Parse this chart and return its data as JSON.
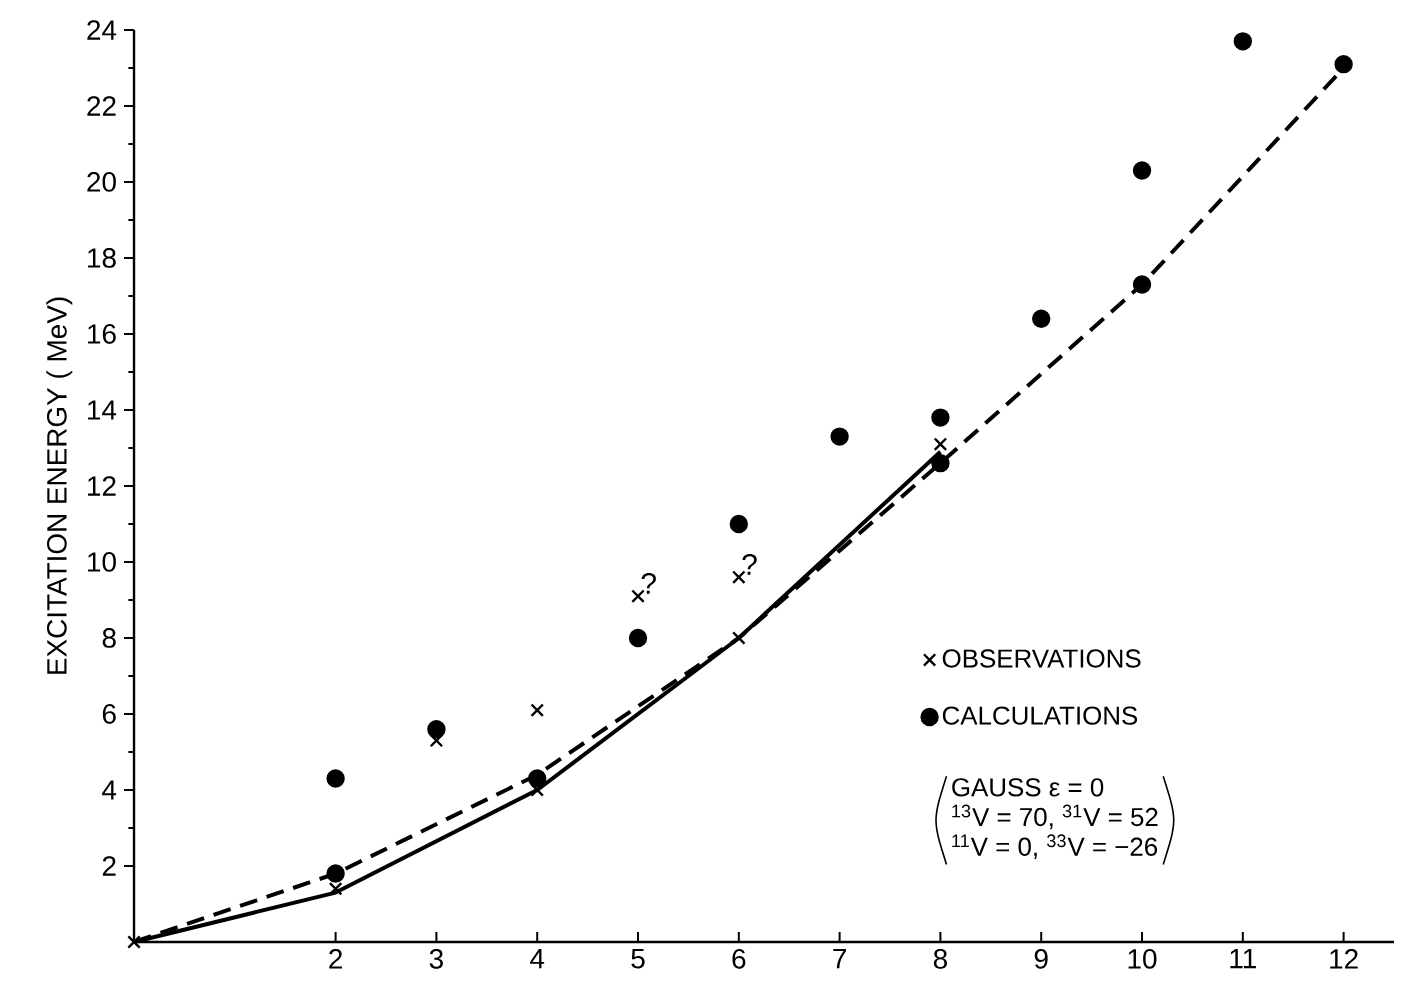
{
  "chart_data": {
    "type": "scatter",
    "ylabel": "EXCITATION ENERGY  ( MeV)",
    "xlim": [
      0,
      12.5
    ],
    "ylim": [
      0,
      24
    ],
    "xticks": [
      2,
      3,
      4,
      5,
      6,
      7,
      8,
      9,
      10,
      11,
      12
    ],
    "yticks": [
      2,
      4,
      6,
      8,
      10,
      12,
      14,
      16,
      18,
      20,
      22,
      24
    ],
    "legend": "right",
    "series": [
      {
        "name": "OBSERVATIONS",
        "marker": "cross",
        "color": "#000000",
        "x": [
          0,
          2,
          3,
          4,
          4,
          5,
          6,
          6,
          8
        ],
        "values": [
          0,
          1.4,
          5.3,
          6.1,
          4.0,
          9.1,
          9.6,
          8.0,
          13.1
        ]
      },
      {
        "name": "CALCULATIONS",
        "marker": "circle",
        "color": "#000000",
        "x": [
          2,
          2,
          3,
          4,
          5,
          6,
          7,
          8,
          8,
          9,
          10,
          10,
          11,
          12
        ],
        "values": [
          4.3,
          1.8,
          5.6,
          4.3,
          8.0,
          11.0,
          13.3,
          13.8,
          12.6,
          16.4,
          20.3,
          17.3,
          23.7,
          23.1
        ]
      },
      {
        "type": "line",
        "line_style": "solid",
        "color": "#000000",
        "x": [
          0,
          2,
          4,
          6,
          8
        ],
        "values": [
          0,
          1.3,
          4.0,
          8.0,
          12.9
        ]
      },
      {
        "type": "line",
        "line_style": "dashed",
        "color": "#000000",
        "x": [
          0,
          2,
          4,
          6,
          8,
          10,
          12
        ],
        "values": [
          0,
          1.8,
          4.4,
          8.0,
          12.6,
          17.3,
          23.0
        ]
      }
    ],
    "annotations": [
      {
        "text": "?",
        "x": 5,
        "y": 9.1
      },
      {
        "text": "?",
        "x": 6,
        "y": 9.6
      },
      "GAUSS  ε = 0",
      "$^{13}$V = 70, $^{31}$V = 52",
      "$^{11}$V = 0, $^{33}$V = −26"
    ]
  }
}
